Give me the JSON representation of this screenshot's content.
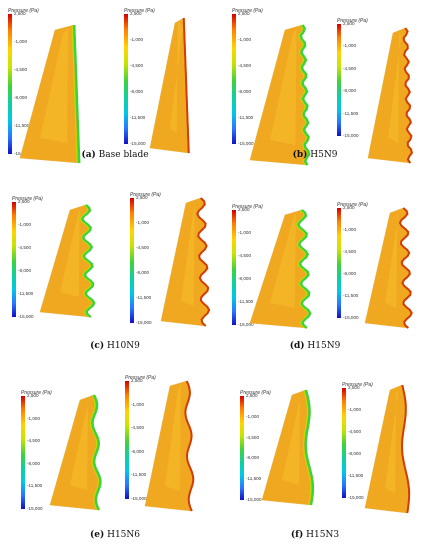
{
  "colorbar": {
    "title": "Pressure (Pa)",
    "ticks": [
      "2,500",
      "-1,000",
      "-4,500",
      "-8,000",
      "-11,500",
      "-15,000"
    ]
  },
  "panels": [
    {
      "label": "(a)",
      "name": "Base blade"
    },
    {
      "label": "(b)",
      "name": "H5N9"
    },
    {
      "label": "(c)",
      "name": "H10N9"
    },
    {
      "label": "(d)",
      "name": "H15N9"
    },
    {
      "label": "(e)",
      "name": "H15N6"
    },
    {
      "label": "(f)",
      "name": "H15N3"
    }
  ],
  "colors": {
    "blade_face": "#f0a820",
    "blade_edge_high": "#d23c00",
    "blade_edge_low": "#3cd23c"
  }
}
